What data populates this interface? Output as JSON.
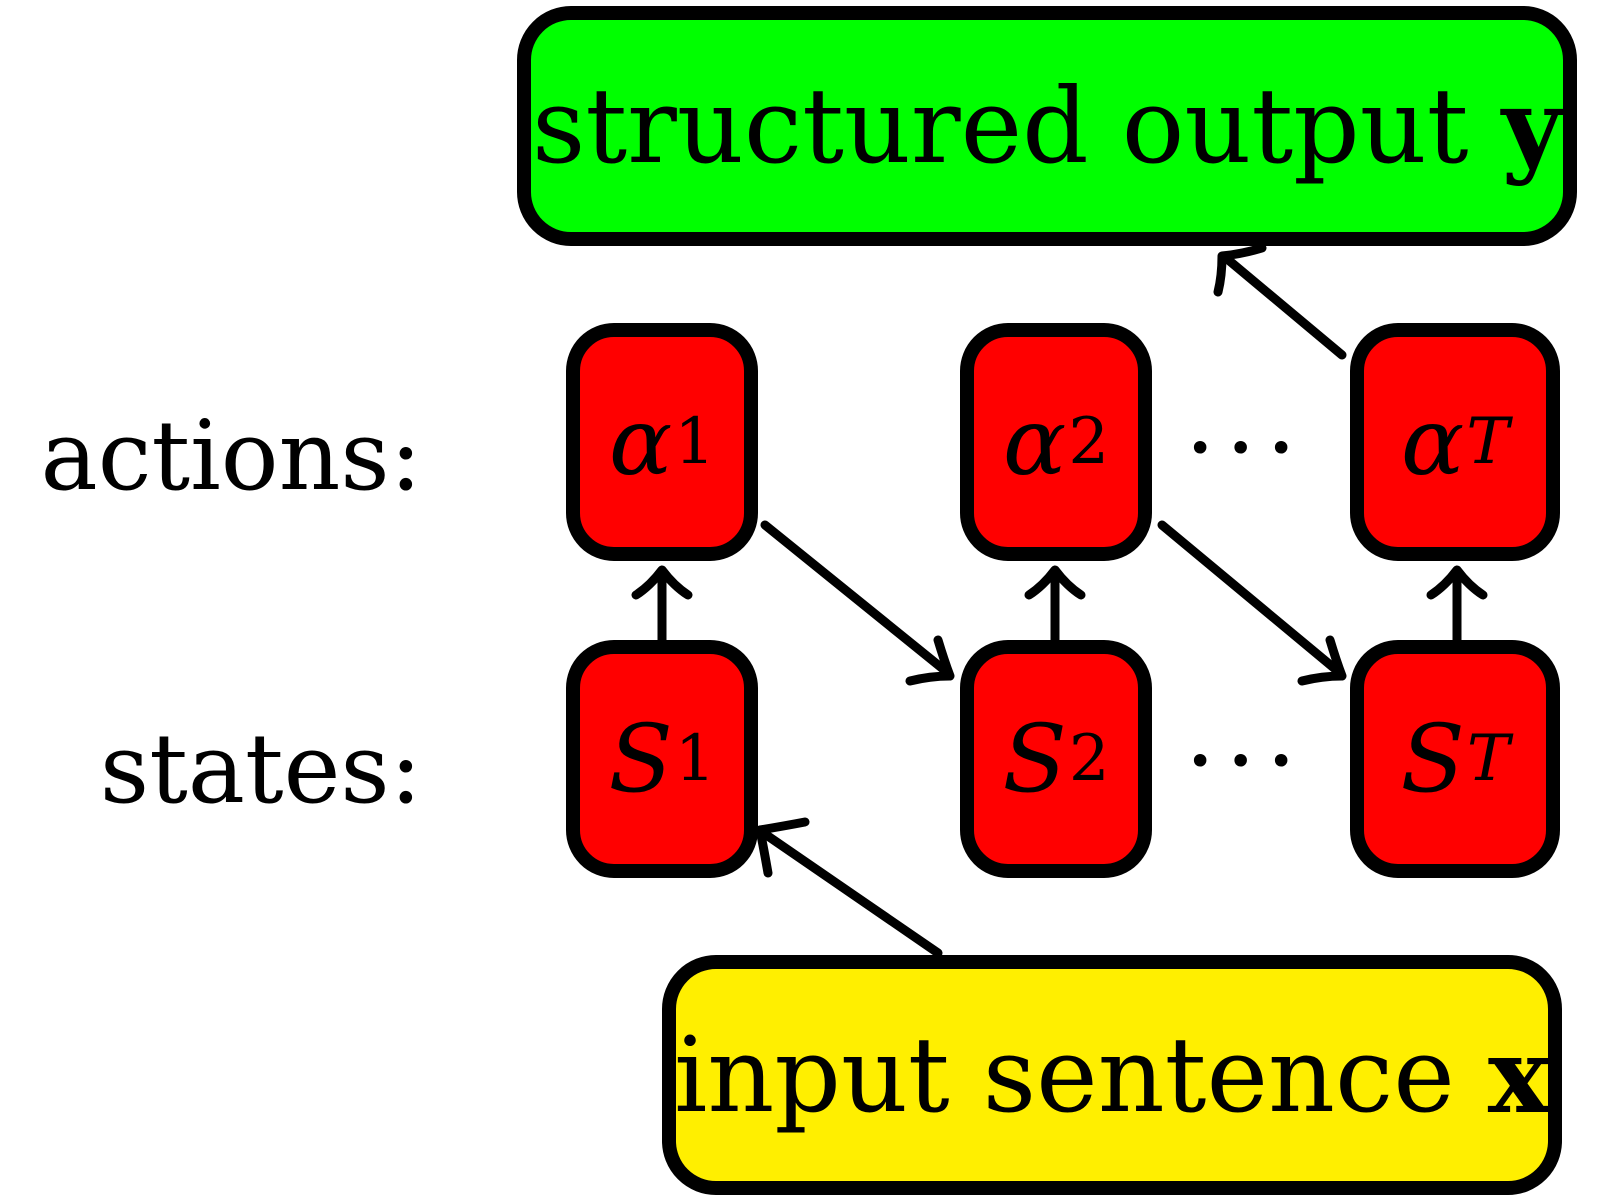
{
  "output_box": {
    "text": "structured output",
    "var": "y"
  },
  "input_box": {
    "text": "input sentence",
    "var": "x"
  },
  "row_labels": {
    "actions": "actions:",
    "states": "states:"
  },
  "actions": [
    {
      "symbol": "α",
      "sub": "1"
    },
    {
      "symbol": "α",
      "sub": "2"
    },
    {
      "symbol": "α",
      "sub": "T"
    }
  ],
  "states": [
    {
      "symbol": "S",
      "sub": "1"
    },
    {
      "symbol": "S",
      "sub": "2"
    },
    {
      "symbol": "S",
      "sub": "T"
    }
  ],
  "ellipsis": "···",
  "colors": {
    "output": "#00ff00",
    "input": "#ffef00",
    "node": "#ff0000",
    "stroke": "#000000"
  }
}
